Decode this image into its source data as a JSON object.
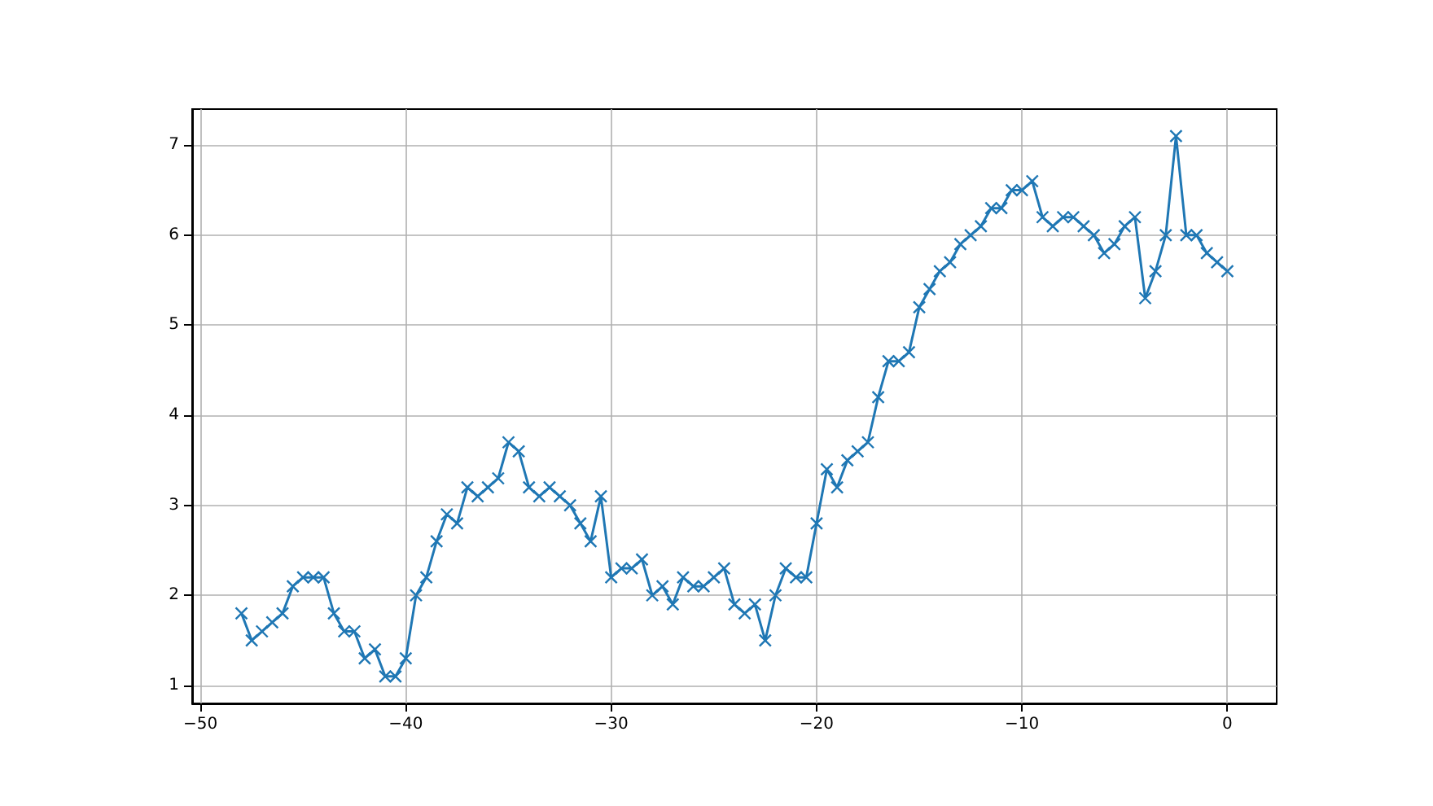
{
  "chart_data": {
    "type": "line",
    "x": [
      -48,
      -47.5,
      -47,
      -46.5,
      -46,
      -45.5,
      -45,
      -44.5,
      -44,
      -43.5,
      -43,
      -42.5,
      -42,
      -41.5,
      -41,
      -40.5,
      -40,
      -39.5,
      -39,
      -38.5,
      -38,
      -37.5,
      -37,
      -36.5,
      -36,
      -35.5,
      -35,
      -34.5,
      -34,
      -33.5,
      -33,
      -32.5,
      -32,
      -31.5,
      -31,
      -30.5,
      -30,
      -29.5,
      -29,
      -28.5,
      -28,
      -27.5,
      -27,
      -26.5,
      -26,
      -25.5,
      -25,
      -24.5,
      -24,
      -23.5,
      -23,
      -22.5,
      -22,
      -21.5,
      -21,
      -20.5,
      -20,
      -19.5,
      -19,
      -18.5,
      -18,
      -17.5,
      -17,
      -16.5,
      -16,
      -15.5,
      -15,
      -14.5,
      -14,
      -13.5,
      -13,
      -12.5,
      -12,
      -11.5,
      -11,
      -10.5,
      -10,
      -9.5,
      -9,
      -8.5,
      -8,
      -7.5,
      -7,
      -6.5,
      -6,
      -5.5,
      -5,
      -4.5,
      -4,
      -3.5,
      -3,
      -2.5,
      -2,
      -1.5,
      -1,
      -0.5,
      0
    ],
    "series": [
      {
        "color": "#1f77b4",
        "values": [
          1.8,
          1.5,
          1.6,
          1.7,
          1.8,
          2.1,
          2.2,
          2.2,
          2.2,
          1.8,
          1.6,
          1.6,
          1.3,
          1.4,
          1.1,
          1.1,
          1.3,
          2.0,
          2.2,
          2.6,
          2.9,
          2.8,
          3.2,
          3.1,
          3.2,
          3.3,
          3.7,
          3.6,
          3.2,
          3.1,
          3.2,
          3.1,
          3.0,
          2.8,
          2.6,
          3.1,
          2.2,
          2.3,
          2.3,
          2.4,
          2.0,
          2.1,
          1.9,
          2.2,
          2.1,
          2.1,
          2.2,
          2.3,
          1.9,
          1.8,
          1.9,
          1.5,
          2.0,
          2.3,
          2.2,
          2.2,
          2.8,
          3.4,
          3.2,
          3.5,
          3.6,
          3.7,
          4.2,
          4.6,
          4.6,
          4.7,
          5.2,
          5.4,
          5.6,
          5.7,
          5.9,
          6.0,
          6.1,
          6.3,
          6.3,
          6.5,
          6.5,
          6.6,
          6.2,
          6.1,
          6.2,
          6.2,
          6.1,
          6.0,
          5.8,
          5.9,
          6.1,
          6.2,
          5.3,
          5.6,
          6.0,
          7.1,
          6.0,
          6.0,
          5.8,
          5.7,
          5.6
        ]
      }
    ],
    "xlim": [
      -50.4,
      2.4
    ],
    "xticks": [
      -50,
      -40,
      -30,
      -20,
      -10,
      0
    ],
    "ylim": [
      0.8,
      7.4
    ],
    "yticks": [
      1,
      2,
      3,
      4,
      5,
      6,
      7
    ],
    "grid": true,
    "marker": "cross",
    "line_style": "solid"
  }
}
